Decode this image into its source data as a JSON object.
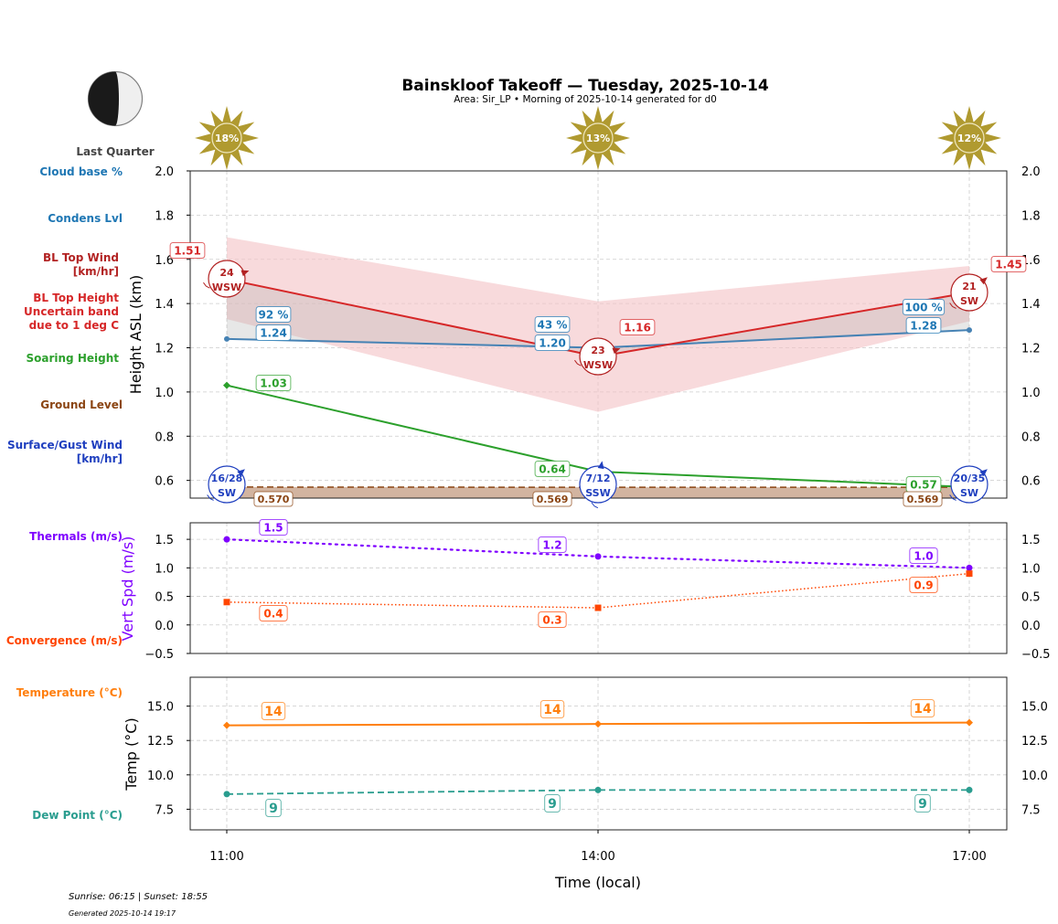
{
  "header": {
    "title": "Bainskloof Takeoff — Tuesday, 2025-10-14",
    "subtitle": "Area: Sir_LP • Morning of 2025-10-14 generated for d0",
    "moon_phase": "Last Quarter",
    "moon_icon": "last-quarter-moon-icon"
  },
  "sun_icons": [
    {
      "time": "11:00",
      "label": "18%",
      "icon": "sun-icon"
    },
    {
      "time": "14:00",
      "label": "13%",
      "icon": "sun-icon"
    },
    {
      "time": "17:00",
      "label": "12%",
      "icon": "sun-icon"
    }
  ],
  "side_labels": {
    "cloud_base": "Cloud base %",
    "condens": "Condens Lvl",
    "bl_top_wind_1": "BL Top Wind",
    "bl_top_wind_2": "[km/hr]",
    "bl_top_height_1": "BL Top Height",
    "bl_top_height_2": "Uncertain band",
    "bl_top_height_3": "due to 1 deg C",
    "soaring": "Soaring Height",
    "ground": "Ground Level",
    "surface_wind_1": "Surface/Gust Wind",
    "surface_wind_2": "[km/hr]",
    "thermals": "Thermals (m/s)",
    "convergence": "Convergence (m/s)",
    "temperature": "Temperature (°C)",
    "dew_point": "Dew Point (°C)"
  },
  "colors": {
    "cloud": "#1f77b4",
    "condens": "#4682b4",
    "bl_top": "#d62728",
    "bl_wind": "#b22222",
    "bl_band": "#f4c2c4",
    "soaring": "#2ca02c",
    "ground": "#8b4513",
    "ground_fill": "#d2b4a0",
    "surface_wind": "#1f3fbf",
    "thermals": "#7f00ff",
    "convergence": "#ff4500",
    "temperature": "#ff7f0e",
    "dew_point": "#2a9d8f",
    "sun": "#b09a30"
  },
  "footer": {
    "sun_times": "Sunrise: 06:15 | Sunset: 18:55",
    "generated": "Generated 2025-10-14 19:17"
  },
  "chart_data": [
    {
      "type": "line",
      "panel": "height",
      "ylabel": "Height ASL (km)",
      "xlabel": "",
      "x": [
        "11:00",
        "14:00",
        "17:00"
      ],
      "ylim": [
        0.52,
        2.0
      ],
      "yticks": [
        "0.6",
        "0.8",
        "1.0",
        "1.2",
        "1.4",
        "1.6",
        "1.8",
        "2.0"
      ],
      "grid": true,
      "series": [
        {
          "name": "BL Top Height",
          "values": [
            1.51,
            1.16,
            1.45
          ],
          "labels": [
            "1.51",
            "1.16",
            "1.45"
          ]
        },
        {
          "name": "BL Top Height uncertain band upper",
          "values": [
            1.7,
            1.41,
            1.57
          ]
        },
        {
          "name": "BL Top Height uncertain band lower",
          "values": [
            1.33,
            0.91,
            1.32
          ]
        },
        {
          "name": "Condens Lvl",
          "values": [
            1.24,
            1.2,
            1.28
          ],
          "labels": [
            "1.24",
            "1.20",
            "1.28"
          ]
        },
        {
          "name": "Cloud base %",
          "values": [
            92,
            43,
            100
          ],
          "labels": [
            "92 %",
            "43 %",
            "100 %"
          ]
        },
        {
          "name": "Soaring Height",
          "values": [
            1.03,
            0.64,
            0.57
          ],
          "labels": [
            "1.03",
            "0.64",
            "0.57"
          ]
        },
        {
          "name": "Ground Level",
          "values": [
            0.57,
            0.569,
            0.569
          ],
          "labels": [
            "0.570",
            "0.569",
            "0.569"
          ]
        }
      ],
      "bl_top_wind": [
        {
          "speed": "24",
          "dir": "WSW"
        },
        {
          "speed": "23",
          "dir": "WSW"
        },
        {
          "speed": "21",
          "dir": "SW"
        }
      ],
      "surface_wind": [
        {
          "speed": "16/28",
          "dir": "SW"
        },
        {
          "speed": "7/12",
          "dir": "SSW"
        },
        {
          "speed": "20/35",
          "dir": "SW"
        }
      ]
    },
    {
      "type": "line",
      "panel": "vertical-speed",
      "ylabel": "Vert Spd (m/s)",
      "x": [
        "11:00",
        "14:00",
        "17:00"
      ],
      "ylim": [
        -0.5,
        1.79
      ],
      "yticks": [
        "−0.5",
        "0.0",
        "0.5",
        "1.0",
        "1.5"
      ],
      "grid": true,
      "series": [
        {
          "name": "Thermals (m/s)",
          "values": [
            1.5,
            1.2,
            1.0
          ],
          "labels": [
            "1.5",
            "1.2",
            "1.0"
          ]
        },
        {
          "name": "Convergence (m/s)",
          "values": [
            0.4,
            0.3,
            0.9
          ],
          "labels": [
            "0.4",
            "0.3",
            "0.9"
          ]
        }
      ]
    },
    {
      "type": "line",
      "panel": "temperature",
      "ylabel": "Temp (°C)",
      "xlabel": "Time (local)",
      "x": [
        "11:00",
        "14:00",
        "17:00"
      ],
      "ylim": [
        6.0,
        17.1
      ],
      "yticks": [
        "7.5",
        "10.0",
        "12.5",
        "15.0"
      ],
      "grid": true,
      "series": [
        {
          "name": "Temperature (°C)",
          "values": [
            13.6,
            13.7,
            13.8
          ],
          "labels": [
            "14",
            "14",
            "14"
          ]
        },
        {
          "name": "Dew Point (°C)",
          "values": [
            8.6,
            8.9,
            8.9
          ],
          "labels": [
            "9",
            "9",
            "9"
          ]
        }
      ]
    }
  ]
}
